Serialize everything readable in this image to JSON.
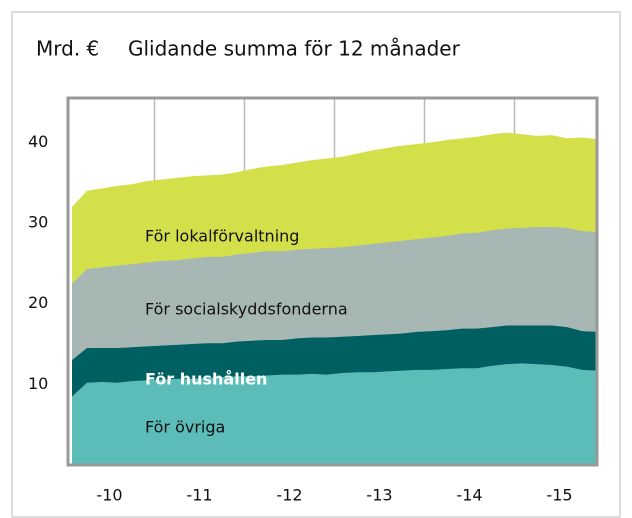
{
  "chart_data": {
    "type": "stacked_area",
    "ylabel": "Mrd. €",
    "title": "Glidande summa för 12 månader",
    "categories": [
      null,
      null,
      "-10",
      null,
      null,
      null,
      null,
      null,
      "-11",
      null,
      null,
      null,
      null,
      null,
      "-12",
      null,
      null,
      null,
      null,
      null,
      "-13",
      null,
      null,
      null,
      null,
      null,
      "-14",
      null,
      null,
      null,
      null,
      null,
      "-15",
      null,
      null,
      null
    ],
    "series": [
      {
        "name": "För övriga",
        "color": "#5bbcb8",
        "values": [
          8.5,
          10.2,
          10.3,
          10.2,
          10.4,
          10.5,
          10.6,
          10.7,
          10.7,
          10.8,
          10.9,
          11.0,
          11.0,
          11.1,
          11.2,
          11.2,
          11.3,
          11.2,
          11.4,
          11.5,
          11.5,
          11.6,
          11.7,
          11.8,
          11.8,
          11.9,
          12.0,
          12.0,
          12.3,
          12.5,
          12.6,
          12.5,
          12.4,
          12.2,
          11.8,
          11.7
        ]
      },
      {
        "name": "För hushållen",
        "color": "#005f61",
        "values": [
          4.5,
          4.3,
          4.2,
          4.3,
          4.2,
          4.2,
          4.2,
          4.2,
          4.3,
          4.3,
          4.2,
          4.3,
          4.4,
          4.4,
          4.3,
          4.5,
          4.5,
          4.6,
          4.5,
          4.5,
          4.6,
          4.6,
          4.6,
          4.7,
          4.8,
          4.8,
          4.9,
          4.9,
          4.8,
          4.8,
          4.7,
          4.8,
          4.9,
          4.9,
          4.8,
          4.8
        ]
      },
      {
        "name": "För socialskyddsfonderna",
        "color": "#a7b8b4",
        "values": [
          9.5,
          9.8,
          10.0,
          10.2,
          10.3,
          10.4,
          10.5,
          10.5,
          10.6,
          10.7,
          10.7,
          10.8,
          10.9,
          11.0,
          11.0,
          11.0,
          11.0,
          11.1,
          11.1,
          11.2,
          11.3,
          11.4,
          11.5,
          11.5,
          11.6,
          11.7,
          11.8,
          11.9,
          12.0,
          12.0,
          12.1,
          12.2,
          12.2,
          12.3,
          12.4,
          12.4
        ]
      },
      {
        "name": "För lokalförvaltning",
        "color": "#d4e04a",
        "values": [
          9.5,
          9.7,
          9.8,
          9.9,
          9.9,
          10.1,
          10.1,
          10.2,
          10.2,
          10.1,
          10.2,
          10.2,
          10.4,
          10.5,
          10.7,
          10.8,
          11.0,
          11.1,
          11.2,
          11.4,
          11.6,
          11.7,
          11.8,
          11.8,
          11.8,
          11.9,
          11.8,
          11.9,
          11.9,
          11.9,
          11.6,
          11.3,
          11.4,
          11.1,
          11.6,
          11.5
        ]
      }
    ],
    "ylim": [
      0,
      45.5
    ],
    "yticks": [
      10,
      20,
      30,
      40
    ]
  }
}
